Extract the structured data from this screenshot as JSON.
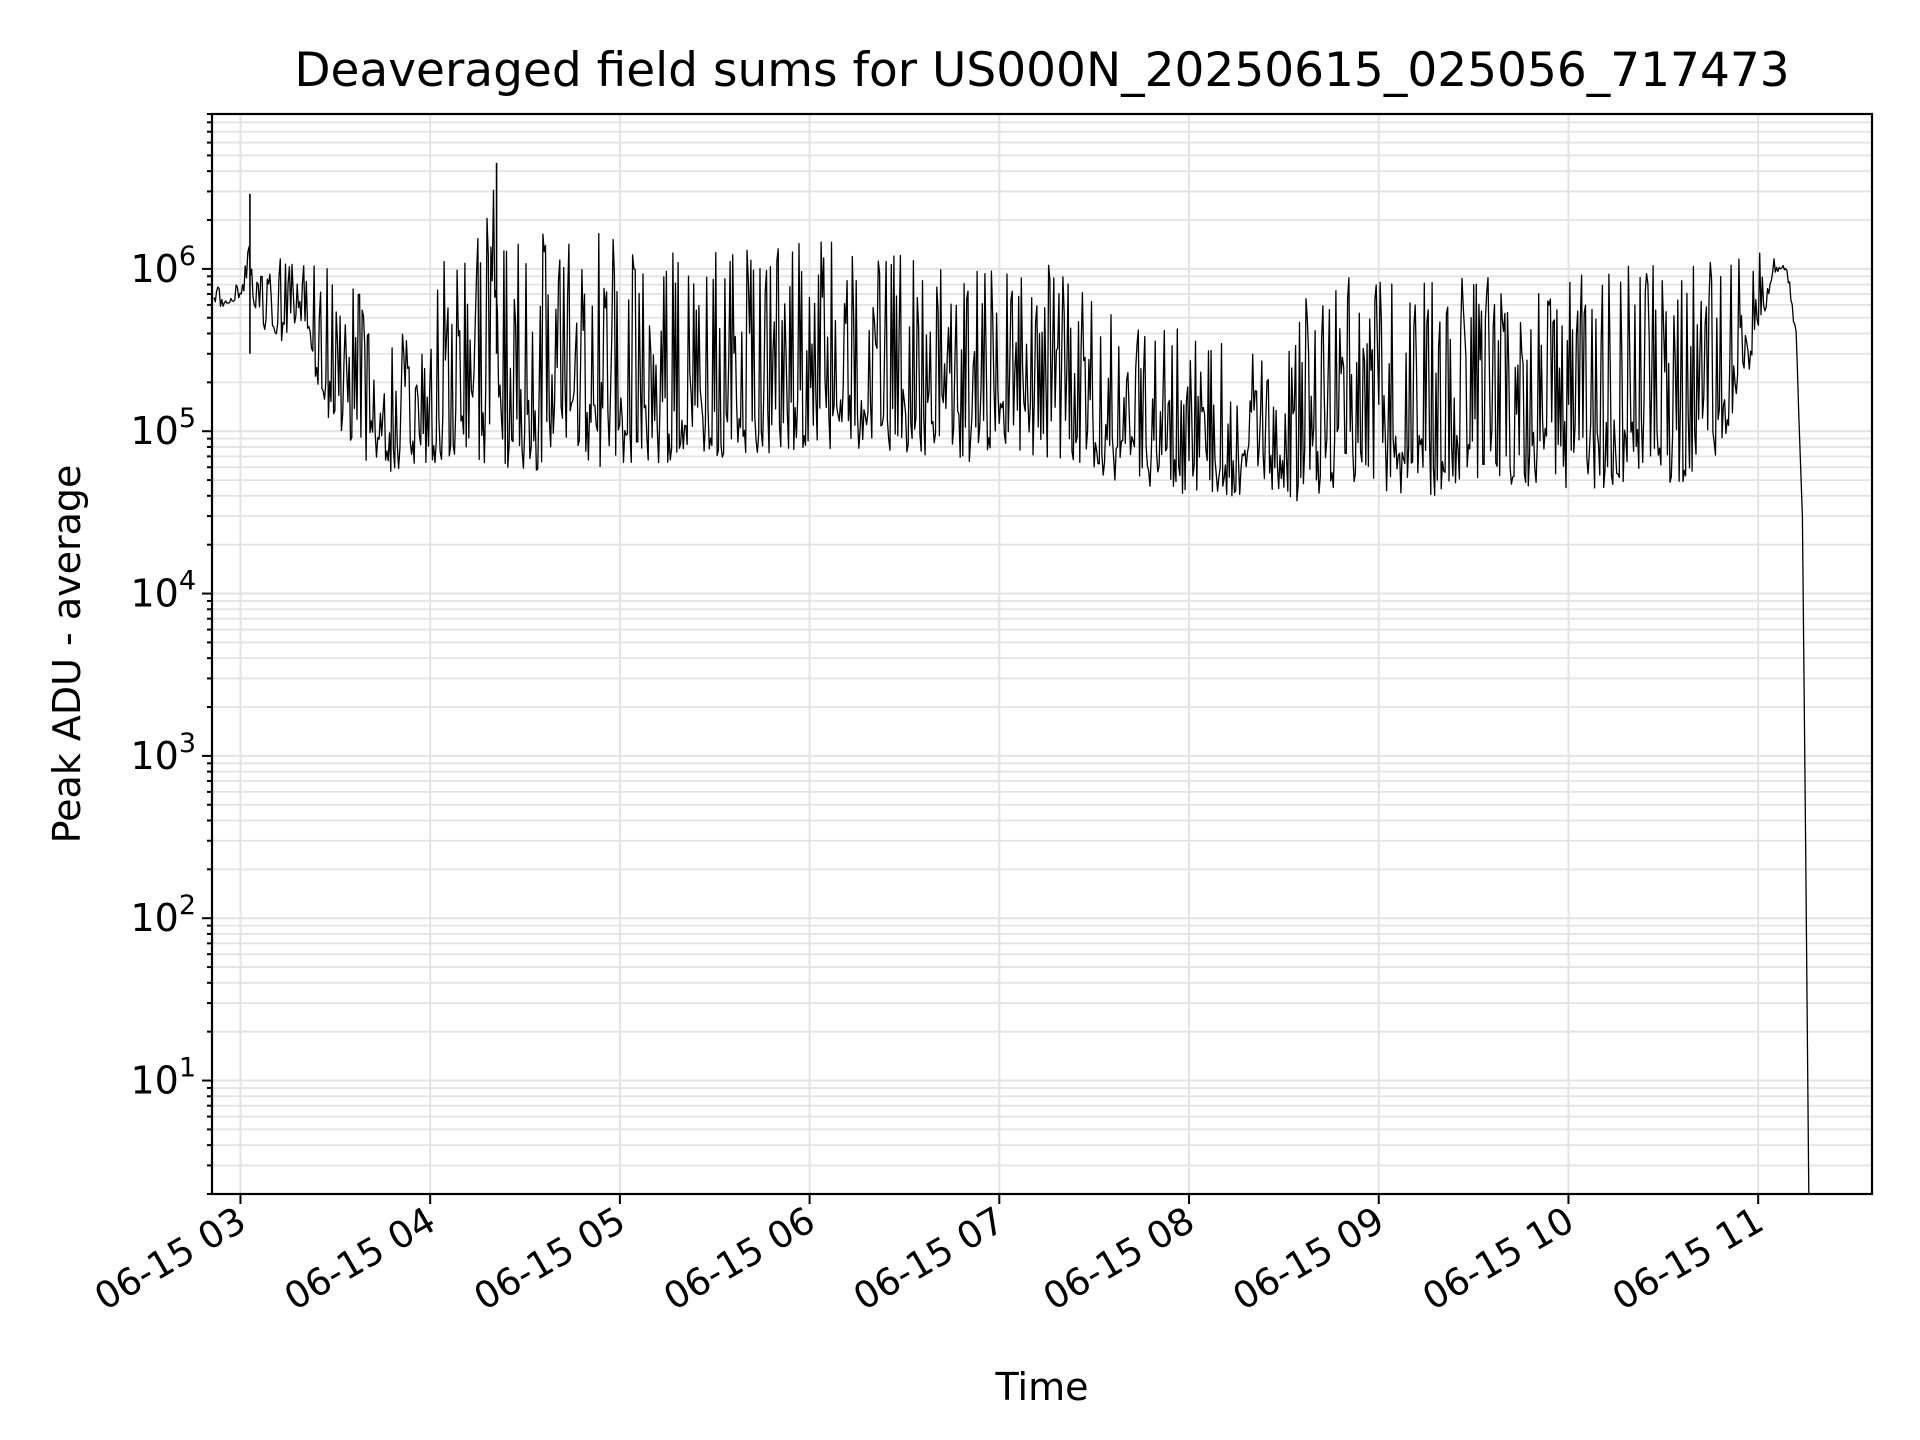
{
  "chart_data": {
    "type": "line",
    "title": "Deaveraged field sums for US000N_20250615_025056_717473",
    "xlabel": "Time",
    "ylabel": "Peak ADU - average",
    "y_scale": "log",
    "ylim": [
      2,
      9000000
    ],
    "xlim": [
      "2025-06-15T02:51",
      "2025-06-15T11:36"
    ],
    "grid": true,
    "line_color": "#000000",
    "grid_color": "#e3e3e3",
    "x_ticks": [
      {
        "value": "2025-06-15T03:00",
        "label": "06-15 03"
      },
      {
        "value": "2025-06-15T04:00",
        "label": "06-15 04"
      },
      {
        "value": "2025-06-15T05:00",
        "label": "06-15 05"
      },
      {
        "value": "2025-06-15T06:00",
        "label": "06-15 06"
      },
      {
        "value": "2025-06-15T07:00",
        "label": "06-15 07"
      },
      {
        "value": "2025-06-15T08:00",
        "label": "06-15 08"
      },
      {
        "value": "2025-06-15T09:00",
        "label": "06-15 09"
      },
      {
        "value": "2025-06-15T10:00",
        "label": "06-15 10"
      },
      {
        "value": "2025-06-15T11:00",
        "label": "06-15 11"
      }
    ],
    "y_ticks": [
      {
        "value": 10,
        "base": "10",
        "exp": "1"
      },
      {
        "value": 100,
        "base": "10",
        "exp": "2"
      },
      {
        "value": 1000,
        "base": "10",
        "exp": "3"
      },
      {
        "value": 10000,
        "base": "10",
        "exp": "4"
      },
      {
        "value": 100000,
        "base": "10",
        "exp": "5"
      },
      {
        "value": 1000000,
        "base": "10",
        "exp": "6"
      }
    ],
    "series": [
      {
        "x": [
          "2025-06-15T02:51",
          "2025-06-15T02:54",
          "2025-06-15T02:57",
          "2025-06-15T03:00",
          "2025-06-15T03:02",
          "2025-06-15T03:03",
          "2025-06-15T03:05",
          "2025-06-15T03:08",
          "2025-06-15T03:12",
          "2025-06-15T03:16",
          "2025-06-15T03:20",
          "2025-06-15T03:25",
          "2025-06-15T03:28",
          "2025-06-15T03:32",
          "2025-06-15T03:36",
          "2025-06-15T03:40",
          "2025-06-15T03:45",
          "2025-06-15T03:50",
          "2025-06-15T03:55",
          "2025-06-15T04:00",
          "2025-06-15T04:05",
          "2025-06-15T04:10",
          "2025-06-15T04:15",
          "2025-06-15T04:20",
          "2025-06-15T04:21",
          "2025-06-15T04:25",
          "2025-06-15T04:30",
          "2025-06-15T04:35",
          "2025-06-15T04:40",
          "2025-06-15T04:45",
          "2025-06-15T04:50",
          "2025-06-15T04:55",
          "2025-06-15T05:00",
          "2025-06-15T05:10",
          "2025-06-15T05:20",
          "2025-06-15T05:30",
          "2025-06-15T05:40",
          "2025-06-15T05:50",
          "2025-06-15T06:00",
          "2025-06-15T06:10",
          "2025-06-15T06:20",
          "2025-06-15T06:30",
          "2025-06-15T06:40",
          "2025-06-15T06:50",
          "2025-06-15T07:00",
          "2025-06-15T07:10",
          "2025-06-15T07:20",
          "2025-06-15T07:30",
          "2025-06-15T07:40",
          "2025-06-15T07:50",
          "2025-06-15T08:00",
          "2025-06-15T08:10",
          "2025-06-15T08:20",
          "2025-06-15T08:30",
          "2025-06-15T08:38",
          "2025-06-15T08:45",
          "2025-06-15T09:00",
          "2025-06-15T09:15",
          "2025-06-15T09:30",
          "2025-06-15T09:45",
          "2025-06-15T10:00",
          "2025-06-15T10:15",
          "2025-06-15T10:25",
          "2025-06-15T10:35",
          "2025-06-15T10:45",
          "2025-06-15T10:55",
          "2025-06-15T11:02",
          "2025-06-15T11:05",
          "2025-06-15T11:08",
          "2025-06-15T11:10",
          "2025-06-15T11:12",
          "2025-06-15T11:14",
          "2025-06-15T11:15",
          "2025-06-15T11:16"
        ],
        "low": [
          550000,
          560000,
          600000,
          650000,
          700000,
          800000,
          500000,
          350000,
          300000,
          350000,
          450000,
          150000,
          90000,
          70000,
          60000,
          55000,
          50000,
          50000,
          50000,
          55000,
          55000,
          55000,
          52000,
          50000,
          50000,
          50000,
          48000,
          48000,
          48000,
          50000,
          50000,
          50000,
          50000,
          52000,
          55000,
          58000,
          60000,
          62000,
          65000,
          65000,
          62000,
          60000,
          58000,
          55000,
          75000,
          60000,
          55000,
          50000,
          40000,
          38000,
          36000,
          35000,
          36000,
          38000,
          28000,
          37000,
          34000,
          33000,
          35000,
          38000,
          38000,
          38000,
          38000,
          40000,
          50000,
          150000,
          450000,
          900000,
          1000000,
          700000,
          350000,
          30000,
          300,
          2
        ],
        "high": [
          800000,
          780000,
          800000,
          900000,
          2900000,
          1400000,
          1100000,
          1100000,
          1200000,
          1200000,
          1200000,
          1100000,
          1000000,
          900000,
          800000,
          600000,
          400000,
          400000,
          400000,
          400000,
          1600000,
          1500000,
          1600000,
          4500000,
          1600000,
          1700000,
          1700000,
          1700000,
          1700000,
          1800000,
          1800000,
          1800000,
          1800000,
          1750000,
          1700000,
          1650000,
          1650000,
          1600000,
          1550000,
          1500000,
          1400000,
          1300000,
          1200000,
          1100000,
          1000000,
          1400000,
          900000,
          700000,
          600000,
          500000,
          450000,
          400000,
          300000,
          250000,
          900000,
          900000,
          900000,
          1000000,
          1000000,
          900000,
          900000,
          1000000,
          1100000,
          1150000,
          1150000,
          1200000,
          1300000,
          1350000,
          1150000,
          900000,
          450000,
          30000,
          300,
          2
        ]
      }
    ],
    "spikes": [
      {
        "x": "2025-06-15T03:03",
        "y": 2900000
      },
      {
        "x": "2025-06-15T04:21",
        "y": 4500000
      }
    ]
  }
}
